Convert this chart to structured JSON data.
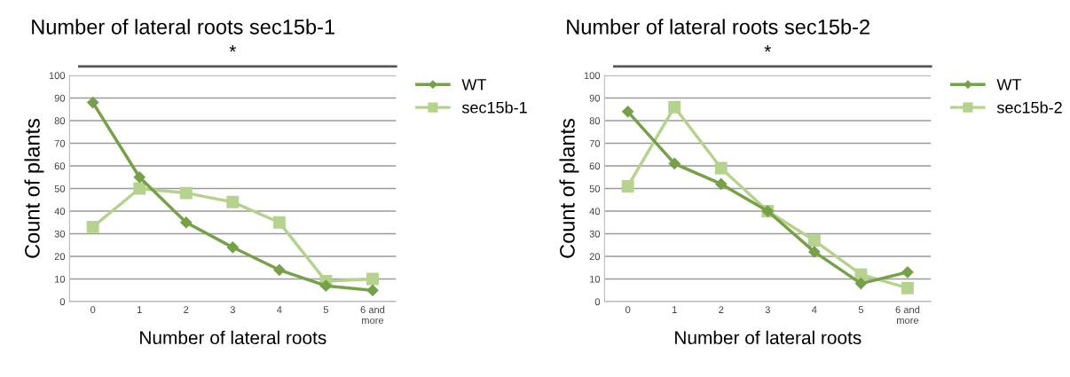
{
  "chart_data": [
    {
      "type": "line",
      "title": "Number of lateral roots sec15b-1",
      "xlabel": "Number of lateral roots",
      "ylabel": "Count of plants",
      "categories": [
        "0",
        "1",
        "2",
        "3",
        "4",
        "5",
        "6 and\nmore"
      ],
      "series": [
        {
          "name": "WT",
          "color": "#77a04a",
          "marker": "diamond",
          "values": [
            88,
            55,
            35,
            24,
            14,
            7,
            5
          ]
        },
        {
          "name": "sec15b-1",
          "color": "#b5d28f",
          "marker": "square",
          "values": [
            33,
            50,
            48,
            44,
            35,
            9,
            10
          ]
        }
      ],
      "ylim": [
        0,
        100
      ],
      "yticks": [
        0,
        10,
        20,
        30,
        40,
        50,
        60,
        70,
        80,
        90,
        100
      ],
      "grid": "y",
      "legend": "top right",
      "annotations": [
        "*"
      ]
    },
    {
      "type": "line",
      "title": "Number of lateral roots sec15b-2",
      "xlabel": "Number of lateral roots",
      "ylabel": "Count of plants",
      "categories": [
        "0",
        "1",
        "2",
        "3",
        "4",
        "5",
        "6 and\nmore"
      ],
      "series": [
        {
          "name": "WT",
          "color": "#77a04a",
          "marker": "diamond",
          "values": [
            84,
            61,
            52,
            40,
            22,
            8,
            13
          ]
        },
        {
          "name": "sec15b-2",
          "color": "#b5d28f",
          "marker": "square",
          "values": [
            51,
            86,
            59,
            40,
            27,
            12,
            6
          ]
        }
      ],
      "ylim": [
        0,
        100
      ],
      "yticks": [
        0,
        10,
        20,
        30,
        40,
        50,
        60,
        70,
        80,
        90,
        100
      ],
      "grid": "y",
      "legend": "top right",
      "annotations": [
        "*"
      ]
    }
  ]
}
